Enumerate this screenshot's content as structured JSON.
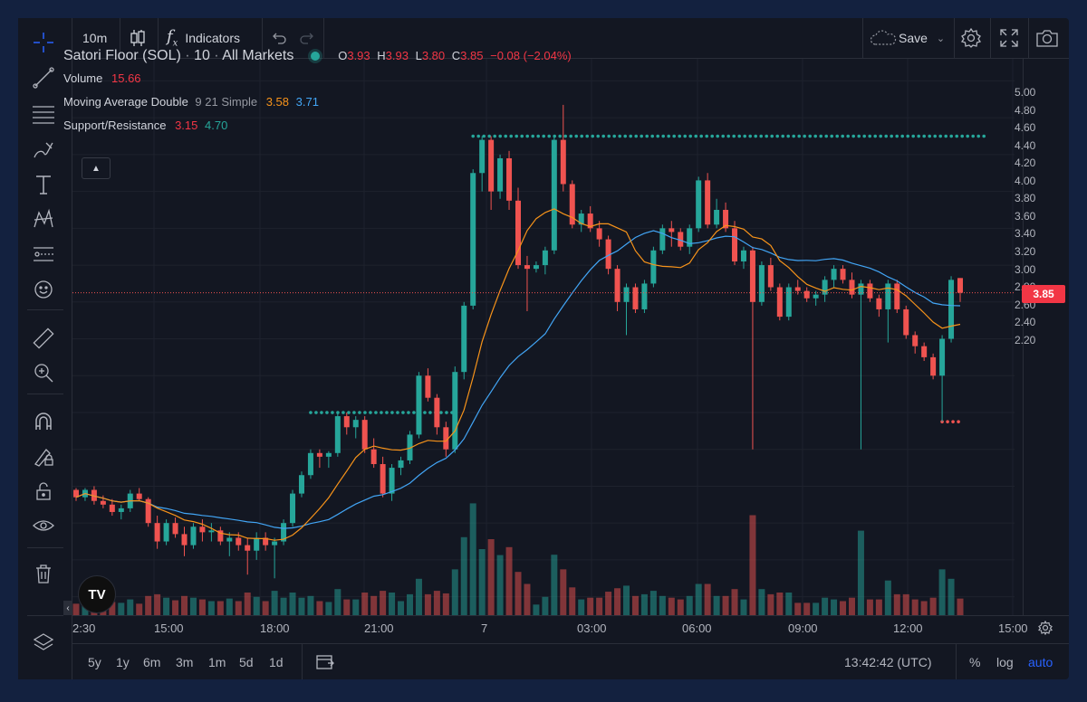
{
  "toolbar": {
    "interval": "10m",
    "indicators_label": "Indicators",
    "save_label": "Save"
  },
  "legend": {
    "symbol": "Satori Floor (SOL)",
    "interval": "10",
    "market": "All Markets",
    "o_label": "O",
    "o_value": "3.93",
    "h_label": "H",
    "h_value": "3.93",
    "l_label": "L",
    "l_value": "3.80",
    "c_label": "C",
    "c_value": "3.85",
    "change": "−0.08 (−2.04%)",
    "volume_label": "Volume",
    "volume_value": "15.66",
    "ma_label": "Moving Average Double",
    "ma_params": "9 21 Simple",
    "ma_fast": "3.58",
    "ma_slow": "3.71",
    "sr_label": "Support/Resistance",
    "sr_support": "3.15",
    "sr_resistance": "4.70"
  },
  "price_axis": {
    "ticks": [
      "5.00",
      "4.80",
      "4.60",
      "4.40",
      "4.20",
      "4.00",
      "3.80",
      "3.60",
      "3.40",
      "3.20",
      "3.00",
      "2.80",
      "2.60",
      "2.40",
      "2.20"
    ],
    "current_price": "3.85"
  },
  "time_axis": {
    "ticks": [
      "2:30",
      "15:00",
      "18:00",
      "21:00",
      "7",
      "03:00",
      "06:00",
      "09:00",
      "12:00",
      "15:00"
    ]
  },
  "bottom_bar": {
    "ranges": [
      "5y",
      "1y",
      "6m",
      "3m",
      "1m",
      "5d",
      "1d"
    ],
    "clock": "13:42:42 (UTC)",
    "percent": "%",
    "log": "log",
    "auto": "auto"
  },
  "colors": {
    "up": "#26a69a",
    "down": "#ef5350",
    "ma_fast": "#f7931a",
    "ma_slow": "#42a5f5",
    "auto_active": "#2962ff"
  },
  "chart_data": {
    "type": "candlestick",
    "ylim": [
      2.1,
      5.12
    ],
    "candles_ohlc": [
      [
        2.78,
        2.79,
        2.72,
        2.74
      ],
      [
        2.74,
        2.79,
        2.72,
        2.78
      ],
      [
        2.78,
        2.8,
        2.7,
        2.72
      ],
      [
        2.72,
        2.75,
        2.68,
        2.7
      ],
      [
        2.7,
        2.73,
        2.64,
        2.66
      ],
      [
        2.66,
        2.7,
        2.62,
        2.68
      ],
      [
        2.68,
        2.78,
        2.66,
        2.76
      ],
      [
        2.76,
        2.79,
        2.72,
        2.73
      ],
      [
        2.73,
        2.74,
        2.58,
        2.6
      ],
      [
        2.6,
        2.64,
        2.46,
        2.5
      ],
      [
        2.5,
        2.62,
        2.48,
        2.6
      ],
      [
        2.6,
        2.63,
        2.52,
        2.54
      ],
      [
        2.54,
        2.58,
        2.42,
        2.48
      ],
      [
        2.48,
        2.6,
        2.46,
        2.58
      ],
      [
        2.58,
        2.62,
        2.5,
        2.55
      ],
      [
        2.55,
        2.6,
        2.5,
        2.56
      ],
      [
        2.56,
        2.58,
        2.48,
        2.5
      ],
      [
        2.5,
        2.55,
        2.42,
        2.52
      ],
      [
        2.52,
        2.55,
        2.45,
        2.48
      ],
      [
        2.48,
        2.52,
        2.32,
        2.45
      ],
      [
        2.45,
        2.55,
        2.4,
        2.52
      ],
      [
        2.52,
        2.55,
        2.45,
        2.48
      ],
      [
        2.48,
        2.52,
        2.3,
        2.5
      ],
      [
        2.5,
        2.62,
        2.48,
        2.6
      ],
      [
        2.6,
        2.78,
        2.58,
        2.76
      ],
      [
        2.76,
        2.88,
        2.74,
        2.86
      ],
      [
        2.86,
        3.0,
        2.84,
        2.98
      ],
      [
        2.98,
        3.0,
        2.9,
        2.96
      ],
      [
        2.96,
        2.99,
        2.9,
        2.98
      ],
      [
        2.98,
        3.2,
        2.96,
        3.18
      ],
      [
        3.18,
        3.2,
        3.08,
        3.12
      ],
      [
        3.12,
        3.18,
        3.06,
        3.16
      ],
      [
        3.16,
        3.18,
        2.98,
        3.0
      ],
      [
        3.0,
        3.06,
        2.9,
        2.92
      ],
      [
        2.92,
        2.96,
        2.74,
        2.76
      ],
      [
        2.76,
        2.92,
        2.72,
        2.9
      ],
      [
        2.9,
        2.96,
        2.86,
        2.94
      ],
      [
        2.94,
        3.1,
        2.92,
        3.08
      ],
      [
        3.08,
        3.42,
        3.06,
        3.4
      ],
      [
        3.4,
        3.44,
        3.26,
        3.28
      ],
      [
        3.28,
        3.3,
        3.08,
        3.12
      ],
      [
        3.12,
        3.15,
        2.96,
        3.0
      ],
      [
        3.0,
        3.45,
        2.98,
        3.42
      ],
      [
        3.42,
        3.8,
        3.38,
        3.78
      ],
      [
        3.78,
        4.52,
        3.76,
        4.5
      ],
      [
        4.5,
        4.7,
        4.4,
        4.68
      ],
      [
        4.68,
        4.7,
        4.3,
        4.4
      ],
      [
        4.4,
        4.6,
        4.36,
        4.58
      ],
      [
        4.58,
        4.62,
        4.3,
        4.35
      ],
      [
        4.35,
        4.42,
        3.98,
        4.0
      ],
      [
        4.0,
        4.05,
        3.75,
        3.98
      ],
      [
        3.98,
        4.02,
        3.96,
        4.0
      ],
      [
        4.0,
        4.1,
        3.95,
        4.08
      ],
      [
        4.08,
        4.7,
        4.06,
        4.68
      ],
      [
        4.68,
        4.87,
        4.4,
        4.44
      ],
      [
        4.44,
        4.46,
        4.2,
        4.22
      ],
      [
        4.22,
        4.3,
        4.18,
        4.28
      ],
      [
        4.28,
        4.32,
        4.18,
        4.2
      ],
      [
        4.2,
        4.24,
        4.1,
        4.14
      ],
      [
        4.14,
        4.16,
        3.95,
        3.98
      ],
      [
        3.98,
        4.0,
        3.75,
        3.8
      ],
      [
        3.8,
        3.9,
        3.62,
        3.88
      ],
      [
        3.88,
        3.9,
        3.74,
        3.76
      ],
      [
        3.76,
        3.92,
        3.74,
        3.9
      ],
      [
        3.9,
        4.1,
        3.88,
        4.08
      ],
      [
        4.08,
        4.22,
        4.06,
        4.2
      ],
      [
        4.2,
        4.24,
        4.1,
        4.18
      ],
      [
        4.18,
        4.2,
        4.08,
        4.1
      ],
      [
        4.1,
        4.22,
        4.06,
        4.2
      ],
      [
        4.2,
        4.48,
        4.18,
        4.46
      ],
      [
        4.46,
        4.5,
        4.2,
        4.22
      ],
      [
        4.22,
        4.36,
        4.2,
        4.3
      ],
      [
        4.3,
        4.34,
        4.18,
        4.2
      ],
      [
        4.2,
        4.24,
        4.0,
        4.02
      ],
      [
        4.02,
        4.1,
        3.98,
        4.08
      ],
      [
        4.08,
        4.1,
        3.0,
        3.8
      ],
      [
        3.8,
        4.02,
        3.78,
        4.0
      ],
      [
        4.0,
        4.04,
        3.86,
        3.88
      ],
      [
        3.88,
        3.9,
        3.7,
        3.72
      ],
      [
        3.72,
        3.9,
        3.7,
        3.88
      ],
      [
        3.88,
        3.92,
        3.84,
        3.86
      ],
      [
        3.86,
        3.88,
        3.8,
        3.82
      ],
      [
        3.82,
        3.86,
        3.78,
        3.84
      ],
      [
        3.84,
        3.94,
        3.8,
        3.92
      ],
      [
        3.92,
        4.0,
        3.88,
        3.98
      ],
      [
        3.98,
        4.0,
        3.9,
        3.92
      ],
      [
        3.92,
        3.96,
        3.82,
        3.84
      ],
      [
        3.84,
        3.92,
        3.0,
        3.9
      ],
      [
        3.9,
        3.92,
        3.8,
        3.82
      ],
      [
        3.82,
        3.84,
        3.72,
        3.76
      ],
      [
        3.76,
        3.92,
        3.58,
        3.9
      ],
      [
        3.9,
        3.92,
        3.74,
        3.76
      ],
      [
        3.76,
        3.78,
        3.6,
        3.62
      ],
      [
        3.62,
        3.64,
        3.52,
        3.56
      ],
      [
        3.56,
        3.58,
        3.48,
        3.5
      ],
      [
        3.5,
        3.52,
        3.38,
        3.4
      ],
      [
        3.4,
        3.62,
        3.15,
        3.6
      ],
      [
        3.6,
        3.94,
        3.58,
        3.92
      ],
      [
        3.93,
        3.93,
        3.8,
        3.85
      ]
    ],
    "ma_fast_values_recent": [
      3.58
    ],
    "ma_slow_values_recent": [
      3.71
    ],
    "support": 3.15,
    "resistance": 4.7
  }
}
